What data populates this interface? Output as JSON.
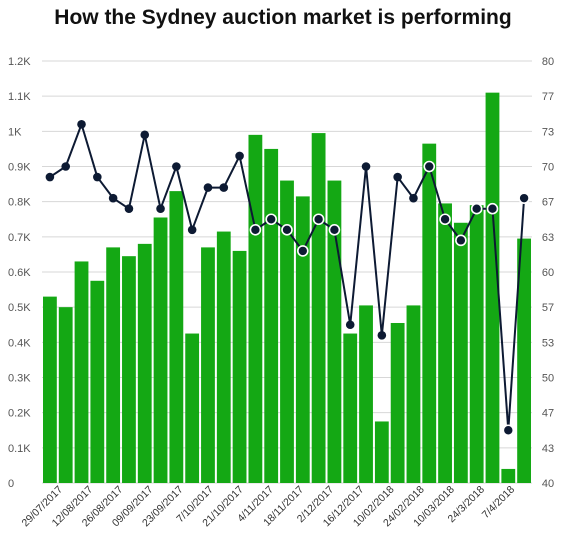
{
  "chart_data": {
    "type": "bar",
    "title": "How the Sydney auction market is performing",
    "xlabel": "",
    "ylabel": "",
    "ylim": [
      0,
      1200
    ],
    "y2lim": [
      40,
      80
    ],
    "grid": true,
    "left_ticks": [
      "0",
      "0.1K",
      "0.2K",
      "0.3K",
      "0.4K",
      "0.5K",
      "0.6K",
      "0.7K",
      "0.8K",
      "0.9K",
      "1K",
      "1.1K",
      "1.2K"
    ],
    "right_ticks": [
      "40",
      "43",
      "47",
      "50",
      "53",
      "57",
      "60",
      "63",
      "67",
      "70",
      "73",
      "77",
      "80"
    ],
    "x_tick_labels": [
      "29/07/2017",
      "12/08/2017",
      "26/08/2017",
      "09/09/2017",
      "23/09/2017",
      "7/10/2017",
      "21/10/2017",
      "4/11/2017",
      "18/11/2017",
      "2/12/2017",
      "16/12/2017",
      "10/02/2018",
      "24/02/2018",
      "10/03/2018",
      "24/3/2018",
      "7/4/2018"
    ],
    "bar_color": "#14a814",
    "line_color": "#0d1a33",
    "series": [
      {
        "type": "bar",
        "axis": "left",
        "values": [
          530,
          500,
          630,
          575,
          670,
          645,
          680,
          755,
          830,
          425,
          670,
          715,
          660,
          990,
          950,
          860,
          815,
          995,
          860,
          425,
          505,
          175,
          455,
          505,
          965,
          795,
          740,
          790,
          1110,
          40,
          695
        ]
      },
      {
        "type": "line",
        "axis": "right",
        "values": [
          69,
          70,
          74,
          69,
          67,
          66,
          73,
          66,
          70,
          64,
          68,
          68,
          71,
          64,
          65,
          64,
          62,
          65,
          64,
          55,
          70,
          54,
          69,
          67,
          70,
          65,
          63,
          66,
          66,
          45,
          67
        ],
        "highlighted_indices": [
          13,
          14,
          15,
          16,
          17,
          18,
          24,
          25,
          26,
          27,
          28,
          29,
          30
        ]
      }
    ]
  }
}
